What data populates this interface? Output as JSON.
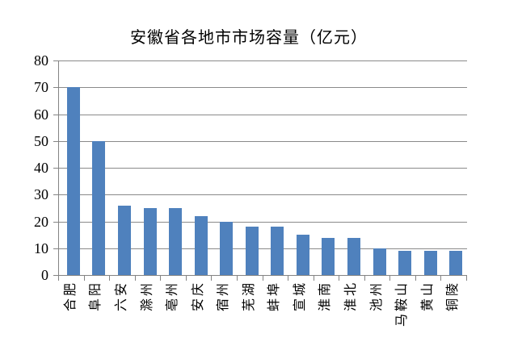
{
  "chart_data": {
    "type": "bar",
    "title": "安徽省各地市市场容量（亿元）",
    "categories": [
      "合肥",
      "阜阳",
      "六安",
      "滁州",
      "亳州",
      "安庆",
      "宿州",
      "芜湖",
      "蚌埠",
      "宣城",
      "淮南",
      "淮北",
      "池州",
      "马鞍山",
      "黄山",
      "铜陵"
    ],
    "values": [
      70,
      50,
      26,
      25,
      25,
      22,
      20,
      18,
      18,
      15,
      14,
      14,
      10,
      9,
      9,
      9
    ],
    "xlabel": "",
    "ylabel": "",
    "ylim": [
      0,
      80
    ],
    "yticks": [
      0,
      10,
      20,
      30,
      40,
      50,
      60,
      70,
      80
    ],
    "ytick_labels": [
      "0",
      "10",
      "20",
      "30",
      "40",
      "50",
      "60",
      "70",
      "80"
    ],
    "grid": true,
    "legend": false,
    "bar_color": "#4F81BD",
    "axis_color": "#848484",
    "gridline_color": "#8a8a8a",
    "text_color": "#000000",
    "category_label_rotation_deg": 90
  }
}
